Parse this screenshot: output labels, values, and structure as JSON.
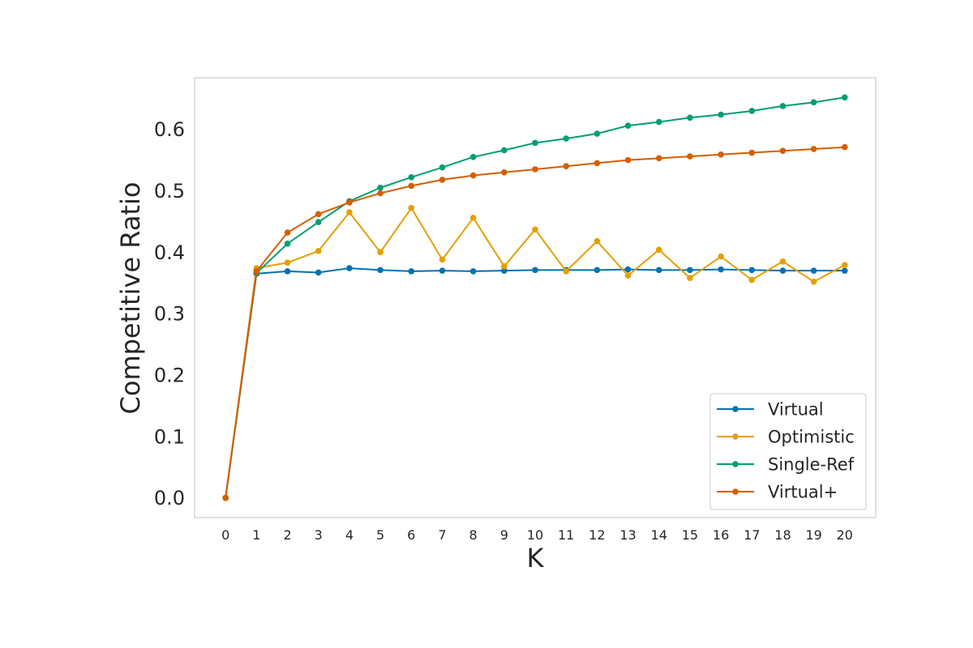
{
  "chart_data": {
    "type": "line",
    "xlabel": "K",
    "ylabel": "Competitive Ratio",
    "x": [
      0,
      1,
      2,
      3,
      4,
      5,
      6,
      7,
      8,
      9,
      10,
      11,
      12,
      13,
      14,
      15,
      16,
      17,
      18,
      19,
      20
    ],
    "xticks": [
      "0",
      "1",
      "2",
      "3",
      "4",
      "5",
      "6",
      "7",
      "8",
      "9",
      "10",
      "11",
      "12",
      "13",
      "14",
      "15",
      "16",
      "17",
      "18",
      "19",
      "20"
    ],
    "yticks": [
      "0.0",
      "0.1",
      "0.2",
      "0.3",
      "0.4",
      "0.5",
      "0.6"
    ],
    "ytick_values": [
      0.0,
      0.1,
      0.2,
      0.3,
      0.4,
      0.5,
      0.6
    ],
    "xlim": [
      -1,
      21
    ],
    "ylim": [
      -0.032,
      0.684
    ],
    "grid": false,
    "legend_position": "lower-right",
    "series": [
      {
        "name": "Virtual",
        "color": "#0072b2",
        "values": [
          0.0,
          0.365,
          0.369,
          0.367,
          0.374,
          0.371,
          0.369,
          0.37,
          0.369,
          0.37,
          0.371,
          0.371,
          0.371,
          0.372,
          0.371,
          0.371,
          0.372,
          0.371,
          0.37,
          0.37,
          0.37
        ]
      },
      {
        "name": "Optimistic",
        "color": "#e69f00",
        "values": [
          0.0,
          0.374,
          0.383,
          0.402,
          0.465,
          0.4,
          0.472,
          0.388,
          0.456,
          0.377,
          0.437,
          0.369,
          0.418,
          0.362,
          0.404,
          0.358,
          0.393,
          0.355,
          0.385,
          0.352,
          0.379
        ]
      },
      {
        "name": "Single-Ref",
        "color": "#009e73",
        "values": [
          0.0,
          0.366,
          0.414,
          0.449,
          0.483,
          0.505,
          0.522,
          0.538,
          0.555,
          0.566,
          0.578,
          0.585,
          0.593,
          0.606,
          0.612,
          0.619,
          0.624,
          0.63,
          0.638,
          0.644,
          0.652
        ]
      },
      {
        "name": "Virtual+",
        "color": "#d55e00",
        "values": [
          0.0,
          0.369,
          0.432,
          0.462,
          0.481,
          0.496,
          0.508,
          0.518,
          0.525,
          0.53,
          0.535,
          0.54,
          0.545,
          0.55,
          0.553,
          0.556,
          0.559,
          0.562,
          0.565,
          0.568,
          0.571
        ]
      }
    ]
  }
}
